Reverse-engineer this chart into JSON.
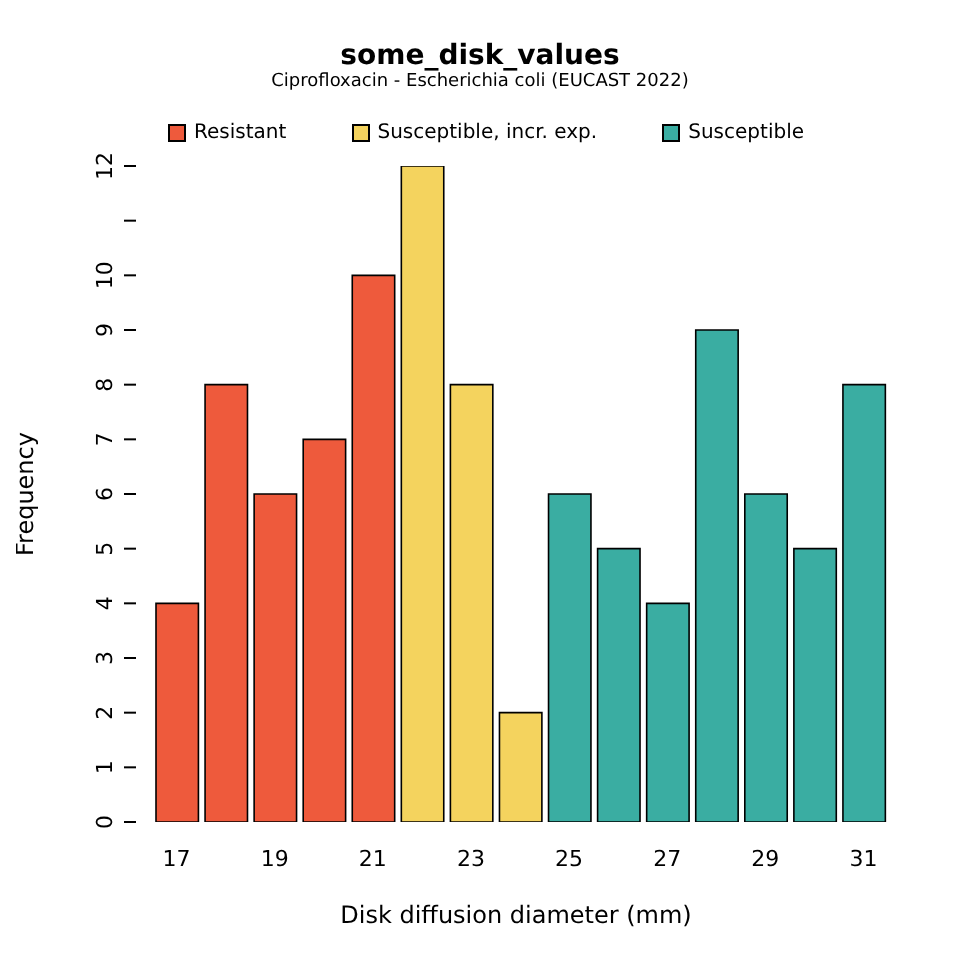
{
  "chart_data": {
    "type": "bar",
    "title": "some_disk_values",
    "subtitle": "Ciprofloxacin - Escherichia coli (EUCAST 2022)",
    "xlabel": "Disk diffusion diameter (mm)",
    "ylabel": "Frequency",
    "categories": [
      "17",
      null,
      "19",
      null,
      "21",
      null,
      "23",
      null,
      "25",
      null,
      "27",
      null,
      "29",
      null,
      "31"
    ],
    "series": [
      {
        "name": "Resistant",
        "color": "#ee5a3c",
        "values": [
          4,
          8,
          6,
          7,
          10,
          null,
          null,
          null,
          null,
          null,
          null,
          null,
          null,
          null,
          null
        ]
      },
      {
        "name": "Susceptible, incr. exp.",
        "color": "#f4d35e",
        "values": [
          null,
          null,
          null,
          null,
          null,
          12,
          8,
          2,
          null,
          null,
          null,
          null,
          null,
          null,
          null
        ]
      },
      {
        "name": "Susceptible",
        "color": "#3aada2",
        "values": [
          null,
          null,
          null,
          null,
          null,
          null,
          null,
          null,
          6,
          5,
          4,
          9,
          6,
          5,
          8
        ]
      }
    ],
    "ylim": [
      0,
      12
    ],
    "yticks": [
      0,
      1,
      2,
      3,
      4,
      5,
      6,
      7,
      8,
      9,
      10,
      {
        "value": 11,
        "label": null
      },
      12
    ],
    "legend": "top"
  }
}
